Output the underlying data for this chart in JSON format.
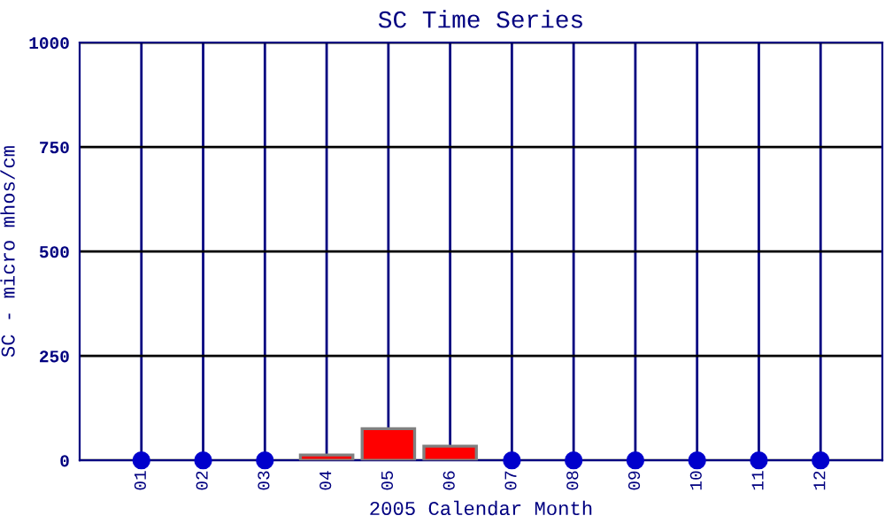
{
  "chart_data": {
    "type": "bar",
    "title": "SC Time Series",
    "xlabel": "2005 Calendar Month",
    "ylabel": "SC - micro mhos/cm",
    "categories": [
      "01",
      "02",
      "03",
      "04",
      "05",
      "06",
      "07",
      "08",
      "09",
      "10",
      "11",
      "12"
    ],
    "series": [
      {
        "color": "#ff0000",
        "values": [
          null,
          null,
          null,
          13,
          76,
          34,
          null,
          null,
          null,
          null,
          null,
          null
        ]
      },
      {
        "type": "scatter",
        "color": "#0000cc",
        "values": [
          0,
          0,
          0,
          null,
          null,
          null,
          0,
          0,
          0,
          0,
          0,
          0
        ]
      }
    ],
    "ylim": [
      0,
      1000
    ],
    "yticks": [
      0,
      250,
      500,
      750,
      1000
    ],
    "grid": true,
    "marker": "circle"
  }
}
